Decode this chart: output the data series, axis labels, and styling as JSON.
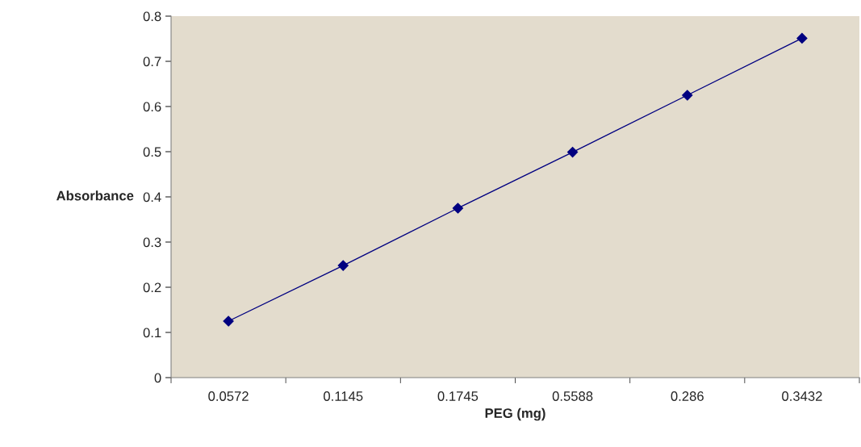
{
  "chart_data": {
    "type": "line",
    "xlabel": "PEG (mg)",
    "ylabel": "Absorbance",
    "categories": [
      "0.0572",
      "0.1145",
      "0.1745",
      "0.5588",
      "0.286",
      "0.3432"
    ],
    "series": [
      {
        "color": "#000080",
        "values": [
          0.125,
          0.248,
          0.375,
          0.499,
          0.625,
          0.751
        ]
      }
    ],
    "ylim": [
      0,
      0.8
    ],
    "yticks": [
      0,
      0.1,
      0.2,
      0.3,
      0.4,
      0.5,
      0.6,
      0.7,
      0.8
    ],
    "marker": "diamond",
    "line_style": "solid",
    "grid": false,
    "legend": false
  }
}
